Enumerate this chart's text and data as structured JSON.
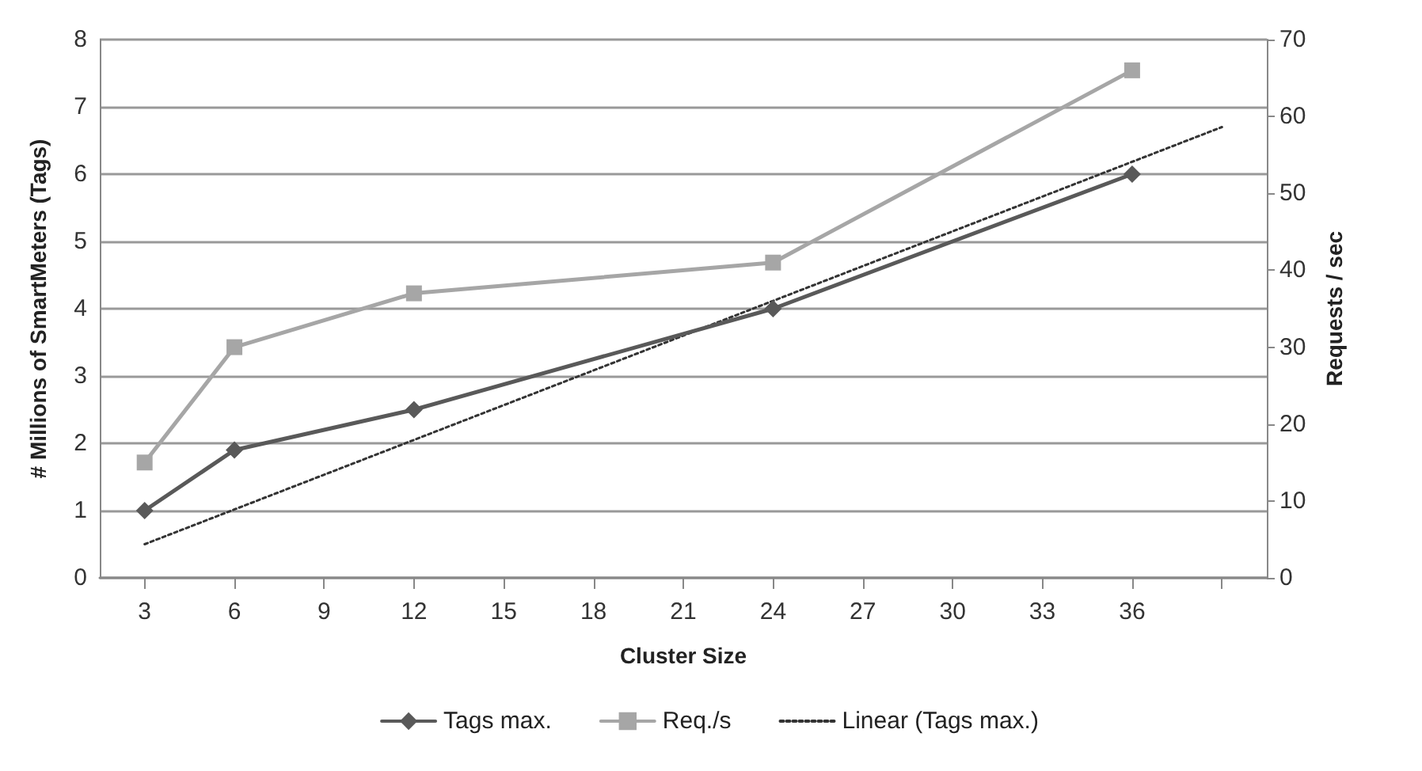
{
  "chart_data": {
    "type": "line",
    "xlabel": "Cluster Size",
    "ylabel": "# Millions of SmartMeters (Tags)",
    "y2label": "Requests / sec",
    "xlim": [
      1.5,
      40.5
    ],
    "xticks": [
      3,
      6,
      9,
      12,
      15,
      18,
      21,
      24,
      27,
      30,
      33,
      36,
      {
        "value": 39,
        "label": null
      }
    ],
    "ylim": [
      0,
      8
    ],
    "yticks": [
      0,
      1,
      2,
      3,
      4,
      5,
      6,
      7,
      8
    ],
    "y2lim": [
      0,
      70
    ],
    "y2ticks": [
      0,
      10,
      20,
      30,
      40,
      50,
      60,
      70
    ],
    "grid": "y",
    "legend": "bottom",
    "series": [
      {
        "name": "Tags max.",
        "color": "#595959",
        "x": [
          3,
          6,
          12,
          24,
          36
        ],
        "values": [
          1,
          1.9,
          2.5,
          4,
          6
        ],
        "marker": "diamond",
        "line_style": "solid"
      },
      {
        "name": "Req./s",
        "color": "#a6a6a6",
        "x": [
          3,
          6,
          12,
          24,
          36
        ],
        "values": [
          15,
          30,
          37,
          41,
          66
        ],
        "axis": "y2",
        "marker": "square",
        "line_style": "solid"
      },
      {
        "name": "Linear (Tags max.)",
        "color": "#333333",
        "x": [
          3,
          39
        ],
        "values": [
          0.5,
          6.7
        ],
        "marker": "none",
        "line_style": "dotted"
      }
    ]
  }
}
